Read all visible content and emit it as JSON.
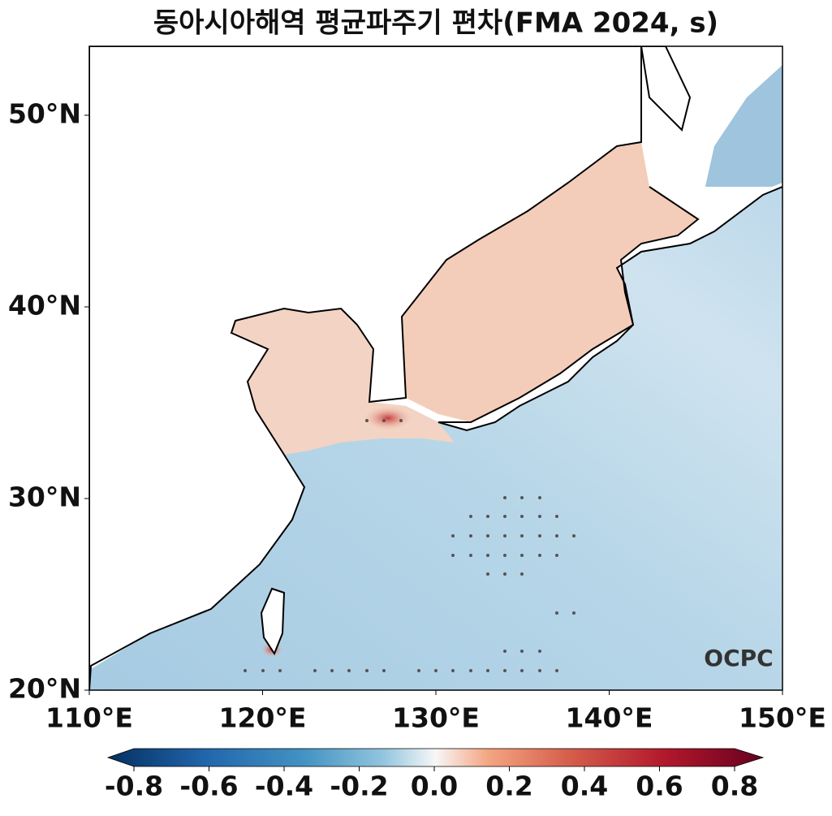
{
  "title": "동아시아해역 평균파주기 편차(FMA 2024, s)",
  "map": {
    "lonlim": [
      110,
      150
    ],
    "latlim": [
      20,
      53.6
    ],
    "lonticks": [
      {
        "value": 110,
        "label": "110°E"
      },
      {
        "value": 120,
        "label": "120°E"
      },
      {
        "value": 130,
        "label": "130°E"
      },
      {
        "value": 140,
        "label": "140°E"
      },
      {
        "value": 150,
        "label": "150°E"
      }
    ],
    "latticks": [
      {
        "value": 20,
        "label": "20°N"
      },
      {
        "value": 30,
        "label": "30°N"
      },
      {
        "value": 40,
        "label": "40°N"
      },
      {
        "value": 50,
        "label": "50°N"
      }
    ]
  },
  "colorbar": {
    "lim": [
      -0.8,
      0.8
    ],
    "ticks": [
      -0.8,
      -0.6,
      -0.4,
      -0.2,
      {
        "value": 0,
        "label": "0.0"
      },
      0.2,
      0.4,
      0.6,
      0.8
    ]
  },
  "logo": "OCPC"
}
